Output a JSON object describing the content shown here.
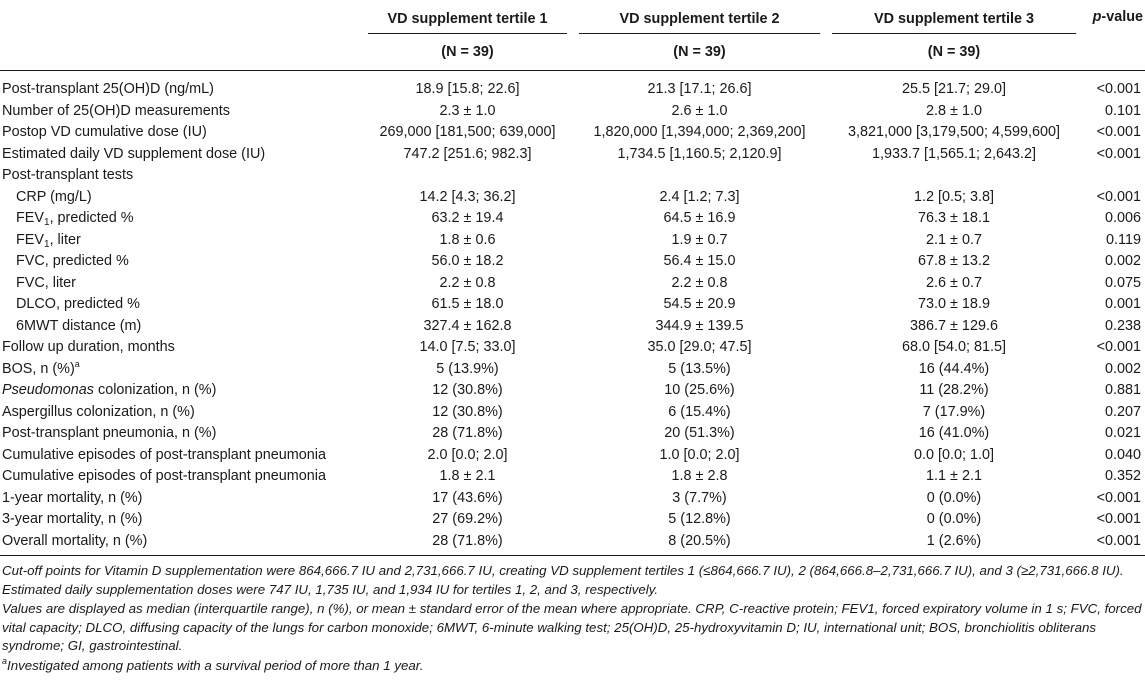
{
  "header": {
    "group1": "VD supplement tertile 1",
    "group2": "VD supplement tertile 2",
    "group3": "VD supplement tertile 3",
    "pvalue_italic": "p",
    "pvalue_rest": "-value",
    "n1": "(N = 39)",
    "n2": "(N = 39)",
    "n3": "(N = 39)"
  },
  "rows": [
    {
      "label": "Post-transplant 25(OH)D (ng/mL)",
      "t1": "18.9 [15.8; 22.6]",
      "t2": "21.3 [17.1; 26.6]",
      "t3": "25.5 [21.7; 29.0]",
      "p": "<0.001"
    },
    {
      "label": "Number of 25(OH)D measurements",
      "t1": "2.3 ± 1.0",
      "t2": "2.6 ± 1.0",
      "t3": "2.8 ± 1.0",
      "p": "0.101"
    },
    {
      "label": "Postop VD cumulative dose (IU)",
      "t1": "269,000 [181,500; 639,000]",
      "t2": "1,820,000 [1,394,000; 2,369,200]",
      "t3": "3,821,000 [3,179,500; 4,599,600]",
      "p": "<0.001"
    },
    {
      "label": "Estimated daily VD supplement dose (IU)",
      "t1": "747.2 [251.6; 982.3]",
      "t2": "1,734.5 [1,160.5; 2,120.9]",
      "t3": "1,933.7 [1,565.1; 2,643.2]",
      "p": "<0.001"
    },
    {
      "label": "Post-transplant tests",
      "t1": "",
      "t2": "",
      "t3": "",
      "p": ""
    },
    {
      "label": "CRP (mg/L)",
      "t1": "14.2 [4.3; 36.2]",
      "t2": "2.4 [1.2; 7.3]",
      "t3": "1.2 [0.5; 3.8]",
      "p": "<0.001"
    },
    {
      "label_pre": "FEV",
      "label_sub": "1",
      "label_post": ", predicted %",
      "t1": "63.2 ± 19.4",
      "t2": "64.5 ± 16.9",
      "t3": "76.3 ± 18.1",
      "p": "0.006"
    },
    {
      "label_pre": "FEV",
      "label_sub": "1",
      "label_post": ", liter",
      "t1": "1.8 ± 0.6",
      "t2": "1.9 ± 0.7",
      "t3": "2.1 ± 0.7",
      "p": "0.119"
    },
    {
      "label": "FVC, predicted %",
      "t1": "56.0 ± 18.2",
      "t2": "56.4 ± 15.0",
      "t3": "67.8 ± 13.2",
      "p": "0.002"
    },
    {
      "label": "FVC, liter",
      "t1": "2.2 ± 0.8",
      "t2": "2.2 ± 0.8",
      "t3": "2.6 ± 0.7",
      "p": "0.075"
    },
    {
      "label": "DLCO, predicted %",
      "t1": "61.5 ± 18.0",
      "t2": "54.5 ± 20.9",
      "t3": "73.0 ± 18.9",
      "p": "0.001"
    },
    {
      "label": "6MWT distance (m)",
      "t1": "327.4 ± 162.8",
      "t2": "344.9 ± 139.5",
      "t3": "386.7 ± 129.6",
      "p": "0.238"
    },
    {
      "label": "Follow up duration, months",
      "t1": "14.0 [7.5; 33.0]",
      "t2": "35.0 [29.0; 47.5]",
      "t3": "68.0 [54.0; 81.5]",
      "p": "<0.001"
    },
    {
      "label_pre": "BOS, n (%)",
      "label_sup": "a",
      "t1": "5 (13.9%)",
      "t2": "5 (13.5%)",
      "t3": "16 (44.4%)",
      "p": "0.002"
    },
    {
      "label_ital": "Pseudomonas",
      "label_post": " colonization, n (%)",
      "t1": "12 (30.8%)",
      "t2": "10 (25.6%)",
      "t3": "11 (28.2%)",
      "p": "0.881"
    },
    {
      "label": "Aspergillus colonization, n (%)",
      "t1": "12 (30.8%)",
      "t2": "6 (15.4%)",
      "t3": "7 (17.9%)",
      "p": "0.207"
    },
    {
      "label": "Post-transplant pneumonia, n (%)",
      "t1": "28 (71.8%)",
      "t2": "20 (51.3%)",
      "t3": "16 (41.0%)",
      "p": "0.021"
    },
    {
      "label": "Cumulative episodes of post-transplant pneumonia",
      "t1": "2.0 [0.0; 2.0]",
      "t2": "1.0 [0.0; 2.0]",
      "t3": "0.0 [0.0; 1.0]",
      "p": "0.040"
    },
    {
      "label": "Cumulative episodes of post-transplant pneumonia",
      "t1": "1.8 ± 2.1",
      "t2": "1.8 ± 2.8",
      "t3": "1.1 ± 2.1",
      "p": "0.352"
    },
    {
      "label": "1-year mortality, n (%)",
      "t1": "17 (43.6%)",
      "t2": "3 (7.7%)",
      "t3": "0 (0.0%)",
      "p": "<0.001"
    },
    {
      "label": "3-year mortality, n (%)",
      "t1": "27 (69.2%)",
      "t2": "5 (12.8%)",
      "t3": "0 (0.0%)",
      "p": "<0.001"
    },
    {
      "label": "Overall mortality, n (%)",
      "t1": "28 (71.8%)",
      "t2": "8 (20.5%)",
      "t3": "1 (2.6%)",
      "p": "<0.001"
    }
  ],
  "notes": {
    "cutoff": "Cut-off points for Vitamin D supplementation were 864,666.7 IU and 2,731,666.7 IU, creating VD supplement tertiles 1 (≤864,666.7 IU), 2 (864,666.8–2,731,666.7 IU), and 3 (≥2,731,666.8 IU). Estimated daily supplementation doses were 747 IU, 1,735 IU, and 1,934 IU for tertiles 1, 2, and 3, respectively.",
    "values": "Values are displayed as median (interquartile range), n (%), or mean ± standard error of the mean where appropriate. CRP, C-reactive protein; FEV1, forced expiratory volume in 1 s; FVC, forced vital capacity; DLCO, diffusing capacity of the lungs for carbon monoxide; 6MWT, 6-minute walking test; 25(OH)D, 25-hydroxyvitamin D; IU, international unit; BOS, bronchiolitis obliterans syndrome; GI, gastrointestinal.",
    "footnote_mark": "a",
    "footnote_text": "Investigated among patients with a survival period of more than 1 year."
  }
}
